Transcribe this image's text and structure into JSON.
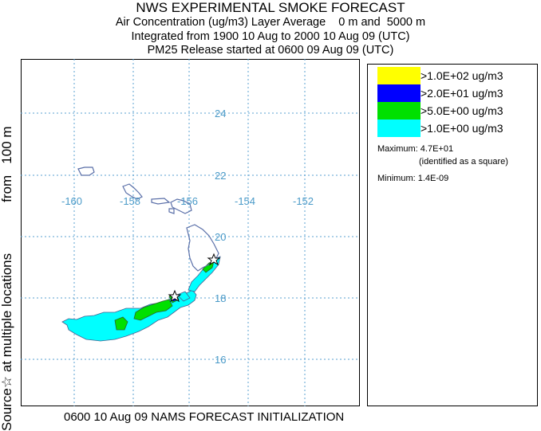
{
  "header": {
    "title": "NWS EXPERIMENTAL SMOKE FORECAST",
    "line2": "Air Concentration (ug/m3) Layer Average    0 m and  5000 m",
    "line3": "Integrated from 1900 10 Aug to 2000 10 Aug 09 (UTC)",
    "line4": "PM25 Release started at 0600 09 Aug 09 (UTC)"
  },
  "side_label": {
    "part1": "Source☆ at multiple locations",
    "part2": "from   100 m"
  },
  "footer": "0600 10 Aug 09 NAMS FORECAST INITIALIZATION",
  "map": {
    "lon_labels": [
      "-160",
      "-158",
      "-156",
      "-154",
      "-152"
    ],
    "lat_labels": [
      "24",
      "22",
      "20",
      "18",
      "16"
    ],
    "grid_color": "#5aa0d0",
    "coast_color": "#5a6fa8"
  },
  "legend": {
    "items": [
      {
        "label": ">1.0E+02 ug/m3",
        "color": "#ffff00"
      },
      {
        "label": ">2.0E+01 ug/m3",
        "color": "#0000ff"
      },
      {
        "label": ">5.0E+00 ug/m3",
        "color": "#00e000"
      },
      {
        "label": ">1.0E+00 ug/m3",
        "color": "#00ffff"
      }
    ],
    "maximum": "Maximum: 4.7E+01",
    "maximum_note": "(identified as a square)",
    "minimum": "Minimum: 1.4E-09"
  }
}
